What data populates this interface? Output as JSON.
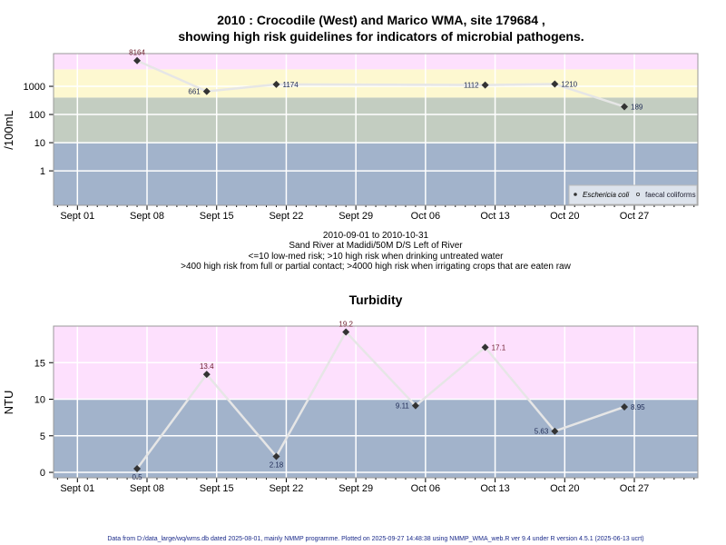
{
  "title_line1": "2010 : Crocodile (West) and Marico WMA, site 179684 ,",
  "title_line2": "showing high risk guidelines for indicators of microbial pathogens.",
  "subtitle": [
    "2010-09-01 to 2010-10-31",
    "Sand River at Madidi/50M D/S Left of River",
    "<=10 low-med risk; >10 high risk when drinking untreated water",
    ">400 high risk from full or partial contact; >4000 high risk when irrigating crops that are eaten raw"
  ],
  "footer": "Data from D:/data_large/wq/wms.db dated 2025-08-01, mainly NMMP programme. Plotted on 2025-09-27 14:48:38 using NMMP_WMA_web.R ver 9.4 under R version 4.5.1 (2025-06-13 ucrt)",
  "colors": {
    "pink": "#fde0fd",
    "yellow": "#fdf8d0",
    "green": "#c3cdc1",
    "blue": "#a2b3cb",
    "line": "#e6e6e6",
    "point": "#333333"
  },
  "chart_data": [
    {
      "type": "line",
      "title": "",
      "ylabel": "/100mL",
      "yscale": "log",
      "ylim": [
        0.06,
        14500
      ],
      "xlim": [
        "2010-08-29",
        "2010-11-02"
      ],
      "x_ticks": [
        "Sept 01",
        "Sept 08",
        "Sept 15",
        "Sept 22",
        "Sept 29",
        "Oct 06",
        "Oct 13",
        "Oct 20",
        "Oct 27"
      ],
      "y_ticks": [
        "1",
        "10",
        "100",
        "1000"
      ],
      "y_tick_values": [
        1,
        10,
        100,
        1000
      ],
      "bands": [
        {
          "from": 0.06,
          "to": 10,
          "color": "#a2b3cb"
        },
        {
          "from": 10,
          "to": 400,
          "color": "#c3cdc1"
        },
        {
          "from": 400,
          "to": 4000,
          "color": "#fdf8d0"
        },
        {
          "from": 4000,
          "to": 14500,
          "color": "#fde0fd"
        }
      ],
      "series": [
        {
          "name": "Eschericia coli",
          "points": [
            {
              "date": "2010-09-07",
              "value": 8164,
              "label": "8164",
              "pos": "top"
            },
            {
              "date": "2010-09-14",
              "value": 661,
              "label": "661",
              "pos": "left"
            },
            {
              "date": "2010-09-21",
              "value": 1174,
              "label": "1174",
              "pos": "right"
            },
            {
              "date": "2010-10-12",
              "value": 1112,
              "label": "1112",
              "pos": "left"
            },
            {
              "date": "2010-10-19",
              "value": 1210,
              "label": "1210",
              "pos": "right"
            },
            {
              "date": "2010-10-26",
              "value": 189,
              "label": "189",
              "pos": "right"
            }
          ]
        }
      ],
      "legend": {
        "items": [
          "Eschericia coli",
          "faecal coliforms"
        ],
        "placement": "bottom-right"
      }
    },
    {
      "type": "line",
      "title": "Turbidity",
      "ylabel": "NTU",
      "yscale": "linear",
      "ylim": [
        -0.74,
        20
      ],
      "xlim": [
        "2010-08-29",
        "2010-11-02"
      ],
      "x_ticks": [
        "Sept 01",
        "Sept 08",
        "Sept 15",
        "Sept 22",
        "Sept 29",
        "Oct 06",
        "Oct 13",
        "Oct 20",
        "Oct 27"
      ],
      "y_ticks": [
        "0",
        "5",
        "10",
        "15"
      ],
      "y_tick_values": [
        0,
        5,
        10,
        15
      ],
      "bands": [
        {
          "from": -0.74,
          "to": 10,
          "color": "#a2b3cb"
        },
        {
          "from": 10,
          "to": 20,
          "color": "#fde0fd"
        }
      ],
      "series": [
        {
          "name": "Turbidity",
          "points": [
            {
              "date": "2010-09-07",
              "value": 0.5,
              "label": "0.5",
              "pos": "bottom"
            },
            {
              "date": "2010-09-14",
              "value": 13.4,
              "label": "13.4",
              "pos": "top"
            },
            {
              "date": "2010-09-21",
              "value": 2.18,
              "label": "2.18",
              "pos": "bottom"
            },
            {
              "date": "2010-09-28",
              "value": 19.2,
              "label": "19.2",
              "pos": "top"
            },
            {
              "date": "2010-10-05",
              "value": 9.11,
              "label": "9.11",
              "pos": "left"
            },
            {
              "date": "2010-10-12",
              "value": 17.1,
              "label": "17.1",
              "pos": "right"
            },
            {
              "date": "2010-10-19",
              "value": 5.63,
              "label": "5.63",
              "pos": "left"
            },
            {
              "date": "2010-10-26",
              "value": 8.95,
              "label": "8.95",
              "pos": "right"
            }
          ]
        }
      ]
    }
  ]
}
